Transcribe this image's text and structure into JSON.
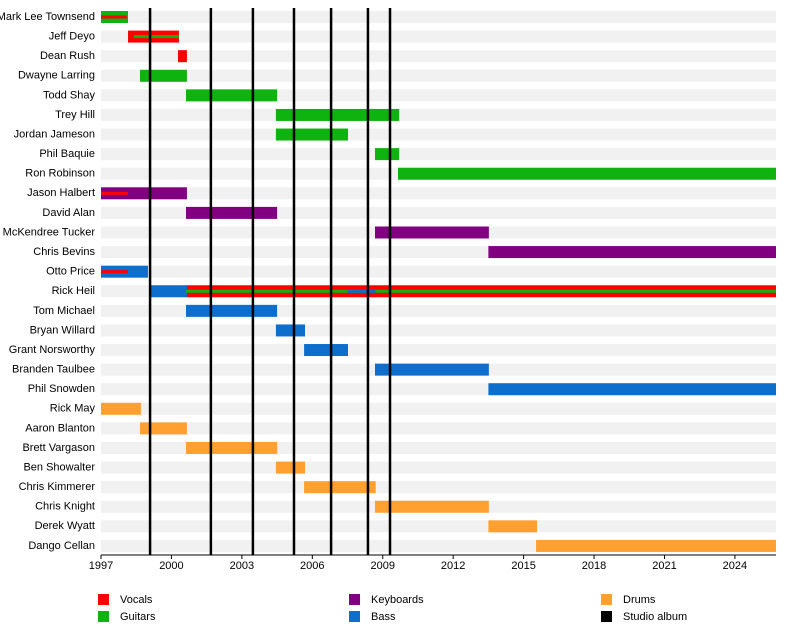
{
  "chart_data": {
    "type": "timeline",
    "categories": [
      "Mark Lee Townsend",
      "Jeff Deyo",
      "Dean Rush",
      "Dwayne Larring",
      "Todd Shay",
      "Trey Hill",
      "Jordan Jameson",
      "Phil Baquie",
      "Ron Robinson",
      "Jason Halbert",
      "David Alan",
      "McKendree Tucker",
      "Chris Bevins",
      "Otto Price",
      "Rick Heil",
      "Tom Michael",
      "Bryan Willard",
      "Grant Norsworthy",
      "Branden Taulbee",
      "Phil Snowden",
      "Rick May",
      "Aaron Blanton",
      "Brett Vargason",
      "Ben Showalter",
      "Chris Kimmerer",
      "Chris Knight",
      "Derek Wyatt",
      "Dango Cellan"
    ],
    "series": [
      {
        "name": "Vocals",
        "color": "#ff0000",
        "values": [
          [
            [
              1997,
              1998.1
            ]
          ],
          [
            [
              1998.15,
              2000.32
            ]
          ],
          [
            [
              2000.28,
              2000.66
            ]
          ],
          null,
          null,
          null,
          null,
          null,
          null,
          [
            [
              1997,
              1998.15
            ]
          ],
          null,
          null,
          null,
          [
            [
              1997,
              1998.15
            ]
          ],
          [
            [
              2000.62,
              2025.75
            ]
          ],
          null,
          null,
          null,
          null,
          null,
          null,
          null,
          null,
          null,
          null,
          null,
          null,
          null
        ]
      },
      {
        "name": "Guitars",
        "color": "#0fb30f",
        "values": [
          [
            [
              1997,
              1998.15
            ]
          ],
          [
            [
              1998.4,
              2000.32
            ]
          ],
          null,
          [
            [
              1998.66,
              2000.66
            ]
          ],
          [
            [
              2000.62,
              2004.5
            ]
          ],
          [
            [
              2004.45,
              2009.7
            ]
          ],
          [
            [
              2004.45,
              2007.52
            ]
          ],
          [
            [
              2008.67,
              2009.7
            ]
          ],
          [
            [
              2009.65,
              2025.75
            ]
          ],
          null,
          null,
          null,
          null,
          null,
          [
            [
              2000.62,
              2025.75
            ]
          ],
          null,
          null,
          null,
          null,
          null,
          null,
          null,
          null,
          null,
          null,
          null,
          null,
          null
        ]
      },
      {
        "name": "Keyboards",
        "color": "#800080",
        "values": [
          null,
          null,
          null,
          null,
          null,
          null,
          null,
          null,
          null,
          [
            [
              1997,
              2000.66
            ]
          ],
          [
            [
              2000.62,
              2004.5
            ]
          ],
          [
            [
              2008.67,
              2013.52
            ]
          ],
          [
            [
              2013.5,
              2025.75
            ]
          ],
          null,
          null,
          null,
          null,
          null,
          null,
          null,
          null,
          null,
          null,
          null,
          null,
          null,
          null,
          null
        ]
      },
      {
        "name": "Bass",
        "color": "#0e6ecb",
        "values": [
          null,
          null,
          null,
          null,
          null,
          null,
          null,
          null,
          null,
          null,
          null,
          null,
          null,
          [
            [
              1997,
              1999
            ]
          ],
          [
            [
              1999.13,
              2000.66
            ],
            [
              2007.5,
              2008.7
            ]
          ],
          [
            [
              2000.62,
              2004.5
            ]
          ],
          [
            [
              2004.45,
              2005.69
            ]
          ],
          [
            [
              2005.65,
              2007.52
            ]
          ],
          [
            [
              2008.67,
              2013.52
            ]
          ],
          [
            [
              2013.5,
              2025.75
            ]
          ],
          null,
          null,
          null,
          null,
          null,
          null,
          null,
          null
        ]
      },
      {
        "name": "Drums",
        "color": "#ffa030",
        "values": [
          null,
          null,
          null,
          null,
          null,
          null,
          null,
          null,
          null,
          null,
          null,
          null,
          null,
          null,
          null,
          null,
          null,
          null,
          null,
          null,
          [
            [
              1997,
              1998.7
            ]
          ],
          [
            [
              1998.66,
              2000.66
            ]
          ],
          [
            [
              2000.62,
              2004.5
            ]
          ],
          [
            [
              2004.45,
              2005.69
            ]
          ],
          [
            [
              2005.65,
              2008.7
            ]
          ],
          [
            [
              2008.67,
              2013.52
            ]
          ],
          [
            [
              2013.5,
              2015.57
            ]
          ],
          [
            [
              2015.53,
              2025.75
            ]
          ]
        ]
      }
    ],
    "markers": {
      "name": "Studio album",
      "color": "#000000",
      "values": [
        1999.09,
        2001.68,
        2003.47,
        2005.22,
        2006.8,
        2008.37,
        2009.31
      ]
    },
    "xlim": [
      1997,
      2025.75
    ],
    "xticks": [
      1997,
      2000,
      2003,
      2006,
      2009,
      2012,
      2015,
      2018,
      2021,
      2024
    ]
  }
}
